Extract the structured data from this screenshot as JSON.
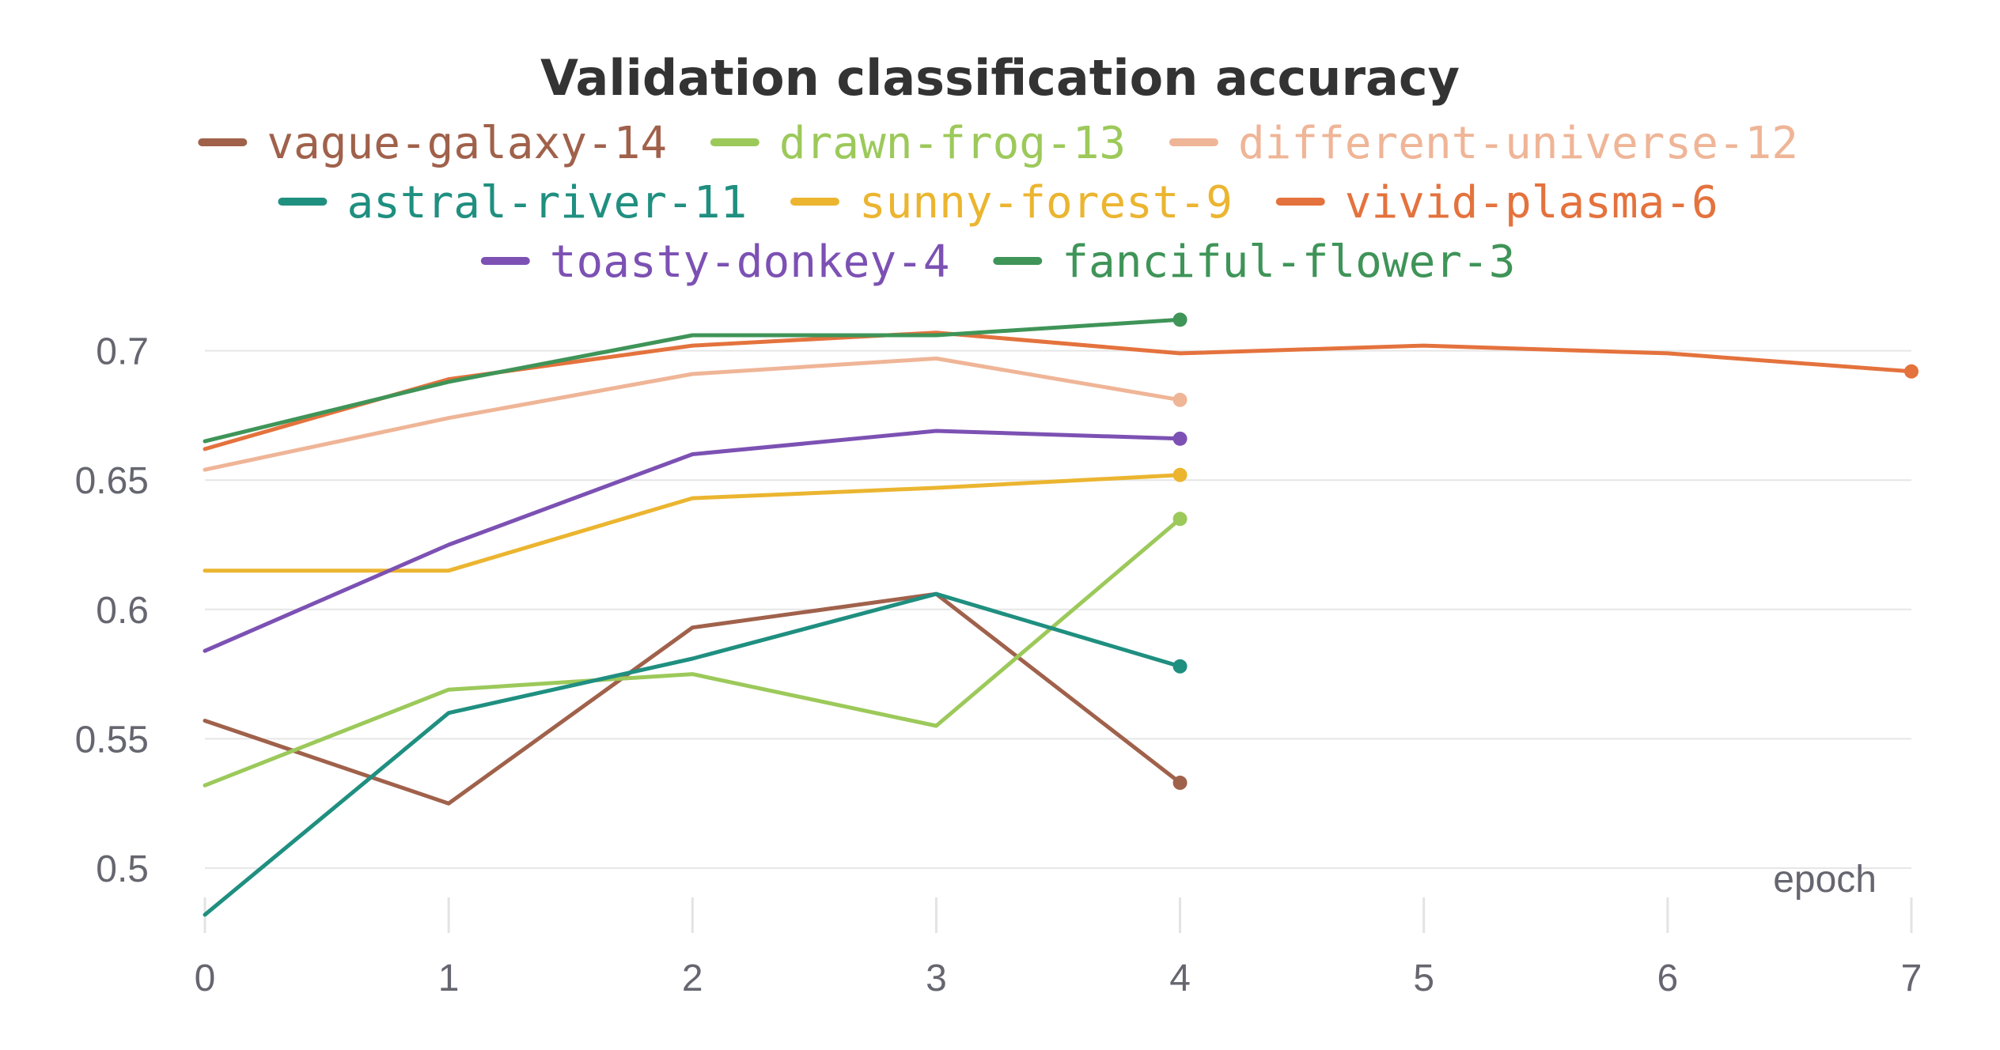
{
  "chart_data": {
    "type": "line",
    "title": "Validation classification accuracy",
    "xlabel": "epoch",
    "ylabel": "",
    "xlim": [
      0,
      7
    ],
    "ylim": [
      0.48,
      0.715
    ],
    "x_ticks": [
      "0",
      "1",
      "2",
      "3",
      "4",
      "5",
      "6",
      "7"
    ],
    "y_ticks": [
      "0.7",
      "0.65",
      "0.6",
      "0.55",
      "0.5"
    ],
    "grid": "horizontal",
    "legend_position": "top",
    "series": [
      {
        "name": "vague-galaxy-14",
        "color": "#a0614b",
        "x": [
          0,
          1,
          2,
          3,
          4
        ],
        "values": [
          0.557,
          0.525,
          0.593,
          0.606,
          0.533
        ]
      },
      {
        "name": "drawn-frog-13",
        "color": "#9cc95a",
        "x": [
          0,
          1,
          2,
          3,
          4
        ],
        "values": [
          0.532,
          0.569,
          0.575,
          0.555,
          0.635
        ]
      },
      {
        "name": "different-universe-12",
        "color": "#efb597",
        "x": [
          0,
          1,
          2,
          3,
          4
        ],
        "values": [
          0.654,
          0.674,
          0.691,
          0.697,
          0.681
        ]
      },
      {
        "name": "astral-river-11",
        "color": "#1f8f80",
        "x": [
          0,
          1,
          2,
          3,
          4
        ],
        "values": [
          0.482,
          0.56,
          0.581,
          0.606,
          0.578
        ]
      },
      {
        "name": "sunny-forest-9",
        "color": "#ebb530",
        "x": [
          0,
          1,
          2,
          3,
          4
        ],
        "values": [
          0.615,
          0.615,
          0.643,
          0.647,
          0.652
        ]
      },
      {
        "name": "vivid-plasma-6",
        "color": "#e4723d",
        "x": [
          0,
          1,
          2,
          3,
          4,
          5,
          6,
          7
        ],
        "values": [
          0.662,
          0.689,
          0.702,
          0.707,
          0.699,
          0.702,
          0.699,
          0.692
        ]
      },
      {
        "name": "toasty-donkey-4",
        "color": "#7c51b3",
        "x": [
          0,
          1,
          2,
          3,
          4
        ],
        "values": [
          0.584,
          0.625,
          0.66,
          0.669,
          0.666
        ]
      },
      {
        "name": "fanciful-flower-3",
        "color": "#3f9458",
        "x": [
          0,
          1,
          2,
          3,
          4
        ],
        "values": [
          0.665,
          0.688,
          0.706,
          0.706,
          0.712
        ]
      }
    ]
  }
}
